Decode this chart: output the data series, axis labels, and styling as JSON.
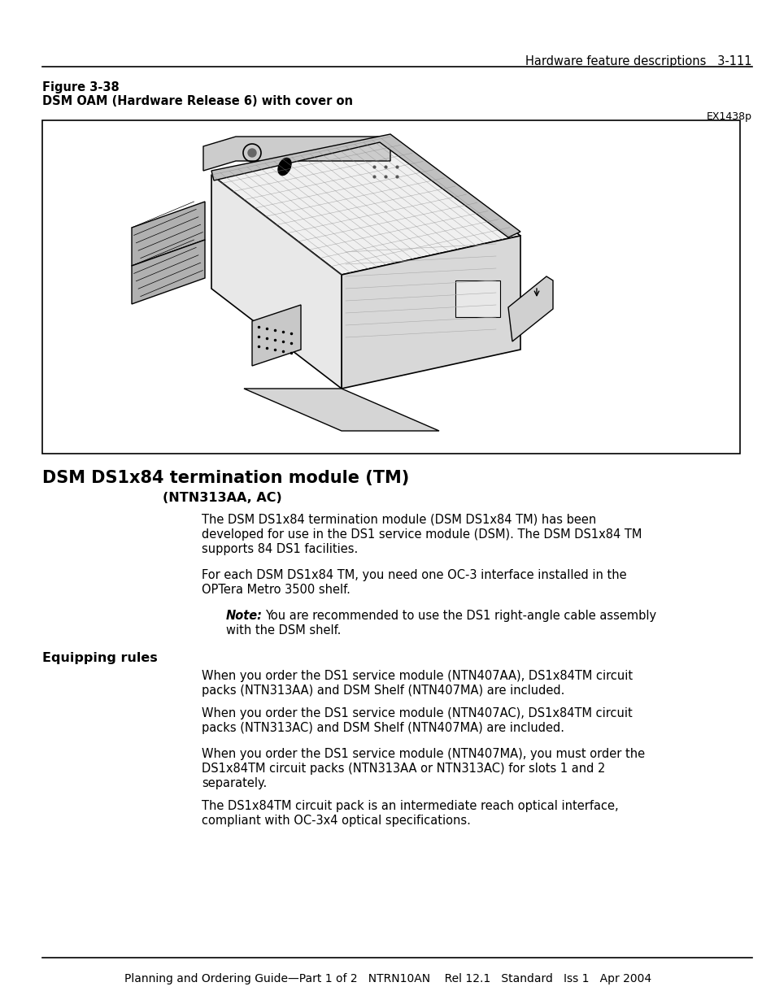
{
  "page_bg": "#ffffff",
  "top_right_text": "Hardware feature descriptions   3-111",
  "figure_label": "Figure 3-38",
  "figure_caption": "DSM OAM (Hardware Release 6) with cover on",
  "figure_ref": "EX1438p",
  "section_title": "DSM DS1x84 termination module (TM)",
  "section_subtitle": "(NTN313AA, AC)",
  "para1_lines": [
    "The DSM DS1x84 termination module (DSM DS1x84 TM) has been",
    "developed for use in the DS1 service module (DSM). The DSM DS1x84 TM",
    "supports 84 DS1 facilities."
  ],
  "para2_lines": [
    "For each DSM DS1x84 TM, you need one OC-3 interface installed in the",
    "OPTera Metro 3500 shelf."
  ],
  "note_label": "Note:",
  "note_line1": "  You are recommended to use the DS1 right-angle cable assembly",
  "note_line2": "with the DSM shelf.",
  "subsection_title": "Equipping rules",
  "eq_para1_lines": [
    "When you order the DS1 service module (NTN407AA), DS1x84TM circuit",
    "packs (NTN313AA) and DSM Shelf (NTN407MA) are included."
  ],
  "eq_para2_lines": [
    "When you order the DS1 service module (NTN407AC), DS1x84TM circuit",
    "packs (NTN313AC) and DSM Shelf (NTN407MA) are included."
  ],
  "eq_para3_lines": [
    "When you order the DS1 service module (NTN407MA), you must order the",
    "DS1x84TM circuit packs (NTN313AA or NTN313AC) for slots 1 and 2",
    "separately."
  ],
  "eq_para4_lines": [
    "The DS1x84TM circuit pack is an intermediate reach optical interface,",
    "compliant with OC-3x4 optical specifications."
  ],
  "footer_text": "Planning and Ordering Guide—Part 1 of 2   NTRN10AN    Rel 12.1   Standard   Iss 1   Apr 2004",
  "text_color": "#000000"
}
